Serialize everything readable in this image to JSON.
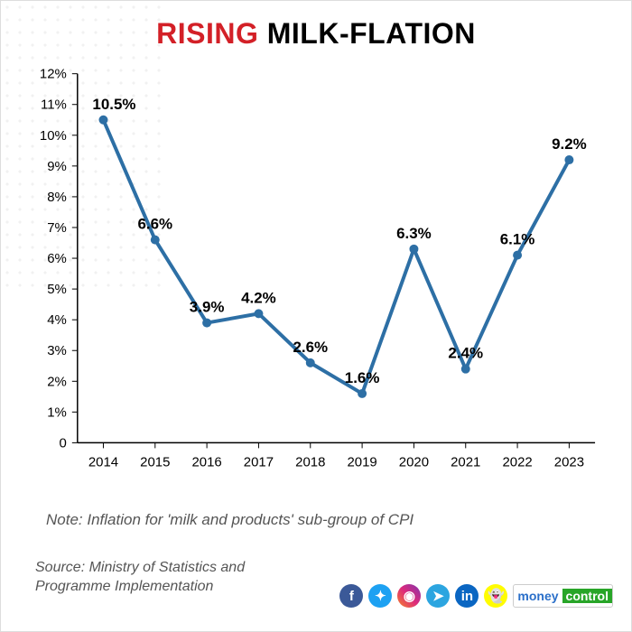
{
  "title_accent": "RISING",
  "title_rest": " MILK-FLATION",
  "title_accent_color": "#d32027",
  "title_rest_color": "#000000",
  "chart": {
    "type": "line",
    "years": [
      "2014",
      "2015",
      "2016",
      "2017",
      "2018",
      "2019",
      "2020",
      "2021",
      "2022",
      "2023"
    ],
    "values": [
      10.5,
      6.6,
      3.9,
      4.2,
      2.6,
      1.6,
      6.3,
      2.4,
      6.1,
      9.2
    ],
    "labels": [
      "10.5%",
      "6.6%",
      "3.9%",
      "4.2%",
      "2.6%",
      "1.6%",
      "6.3%",
      "2.4%",
      "6.1%",
      "9.2%"
    ],
    "yticks": [
      "0",
      "1%",
      "2%",
      "3%",
      "4%",
      "5%",
      "6%",
      "7%",
      "8%",
      "9%",
      "10%",
      "11%",
      "12%"
    ],
    "ylim": [
      0,
      12
    ],
    "line_color": "#2d6fa5",
    "marker_color": "#2d6fa5",
    "line_width": 4,
    "marker_radius": 5,
    "axis_color": "#000000",
    "background_color": "#ffffff"
  },
  "note": "Note: Inflation for 'milk and products' sub-group  of CPI",
  "source_l1": "Source: Ministry of Statistics and",
  "source_l2": "Programme Implementation",
  "social": [
    {
      "name": "facebook-icon",
      "glyph": "f",
      "bg": "#3b5998"
    },
    {
      "name": "twitter-icon",
      "glyph": "✦",
      "bg": "#1da1f2"
    },
    {
      "name": "instagram-icon",
      "glyph": "◉",
      "bg": "linear-gradient(45deg,#f58529,#dd2a7b,#8134af)"
    },
    {
      "name": "telegram-icon",
      "glyph": "➤",
      "bg": "#2ca5e0"
    },
    {
      "name": "linkedin-icon",
      "glyph": "in",
      "bg": "#0a66c2"
    },
    {
      "name": "snapchat-icon",
      "glyph": "👻",
      "bg": "#fffc00"
    }
  ],
  "brand": {
    "a": "money",
    "b": "control",
    "a_color": "#2a6fc9",
    "b_color": "#ffffff",
    "b_bg": "#28a528"
  }
}
